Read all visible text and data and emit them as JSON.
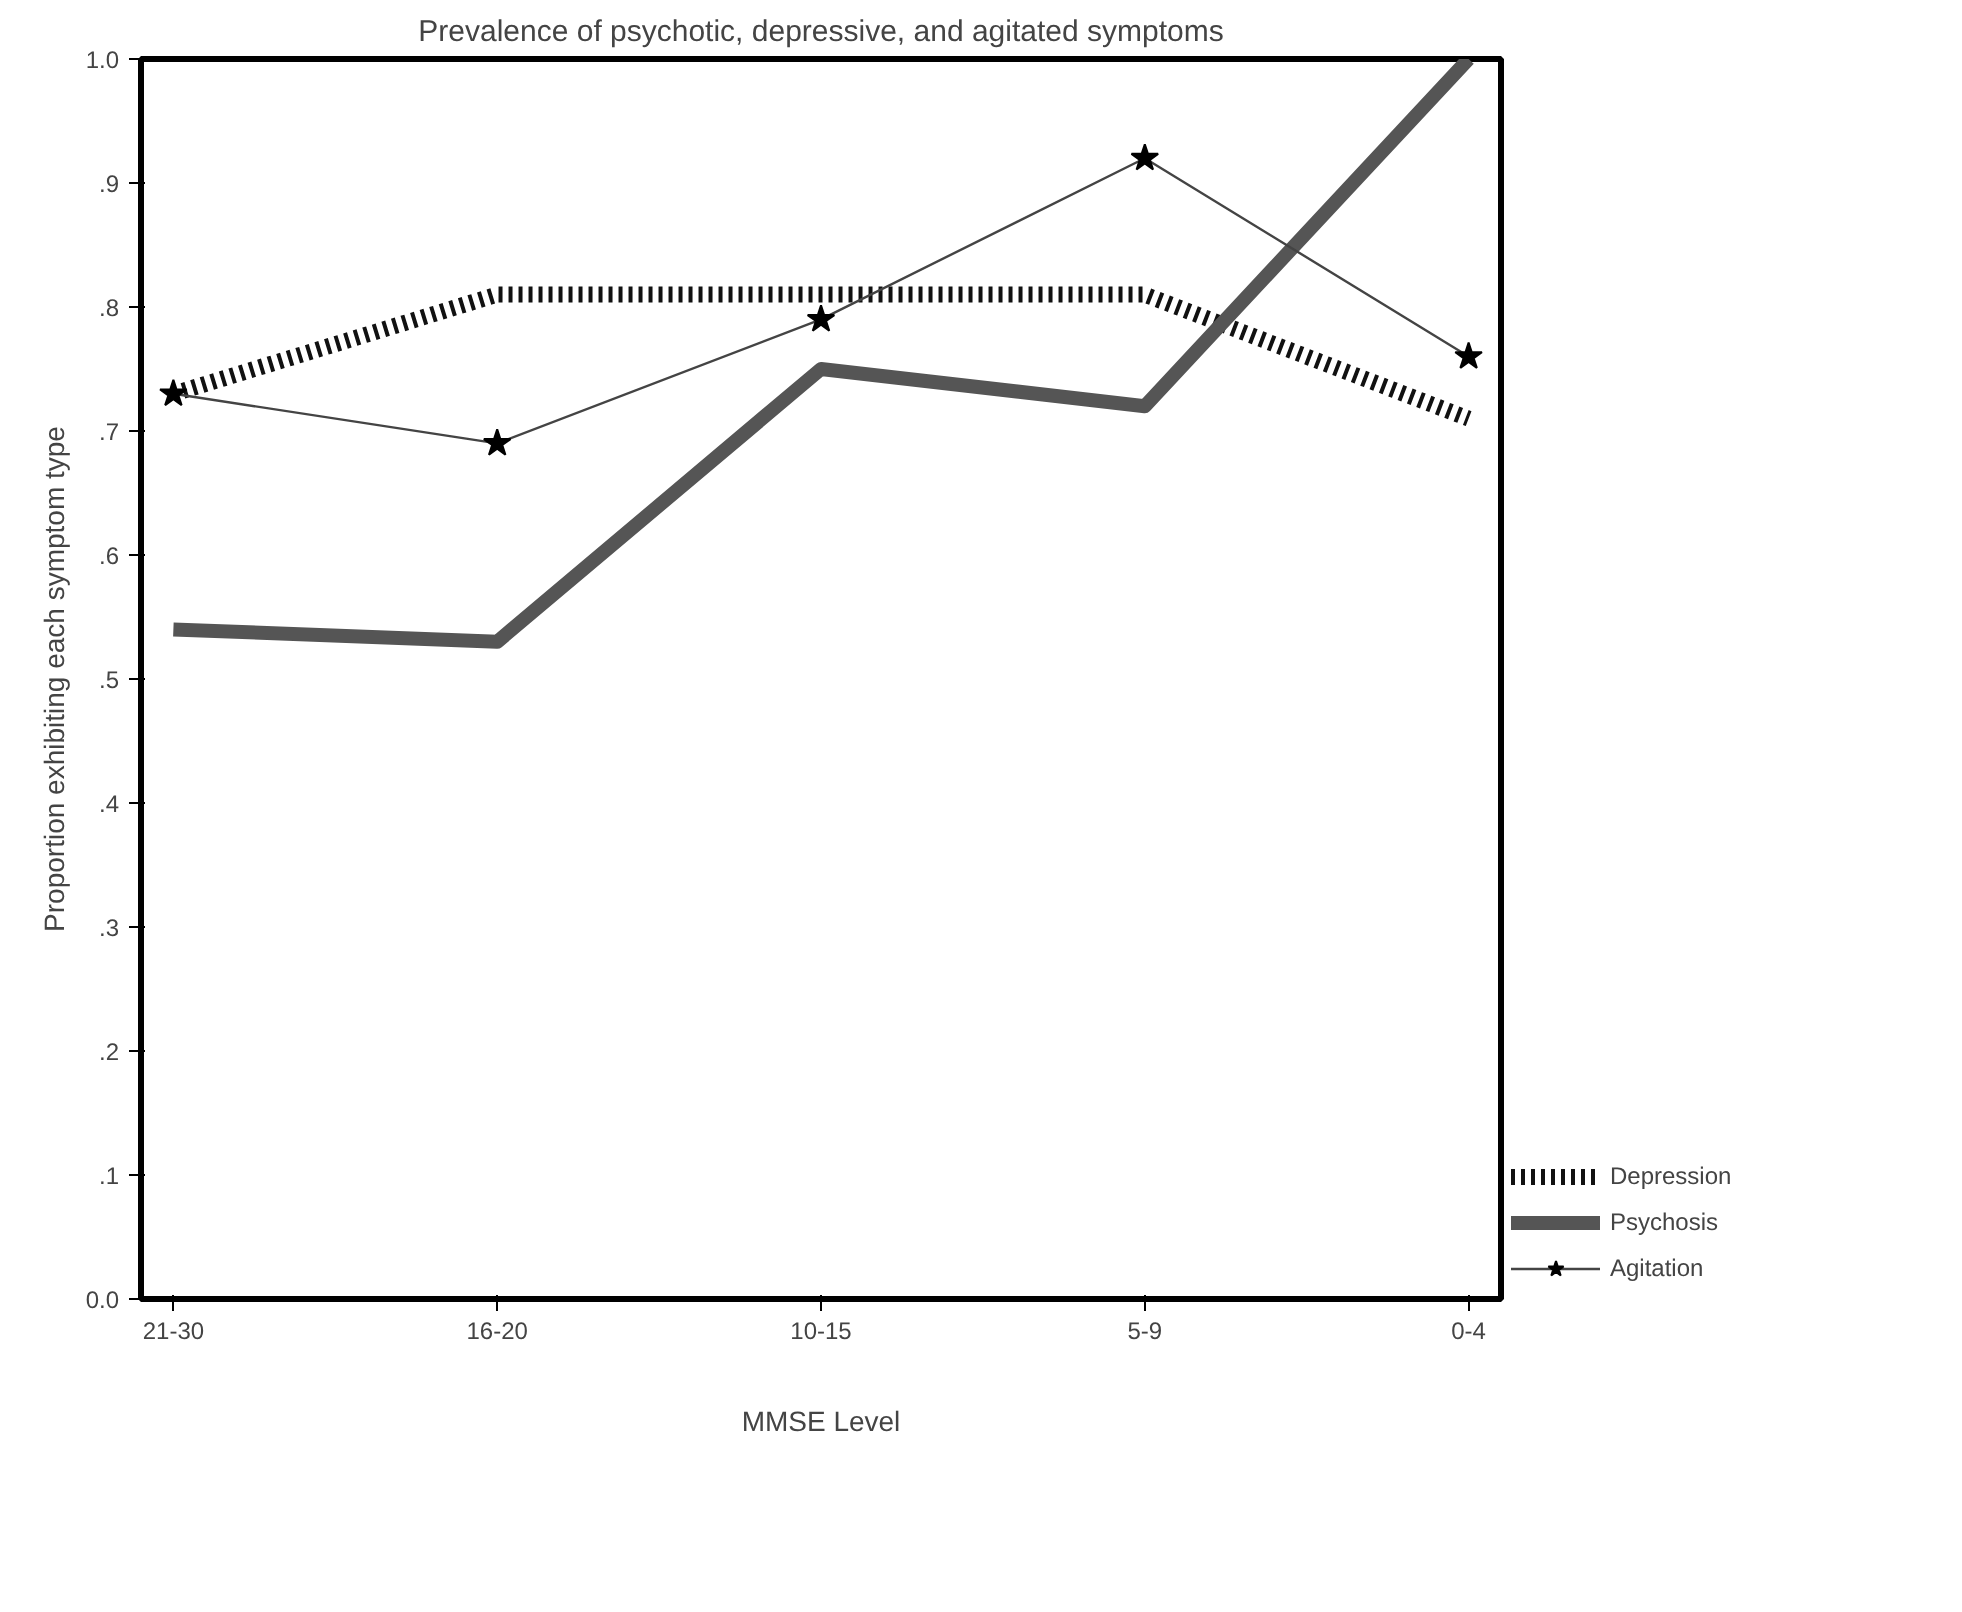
{
  "chart_data": {
    "type": "line",
    "title": "Prevalence of psychotic, depressive, and agitated symptoms",
    "xlabel": "MMSE Level",
    "ylabel": "Proportion exhibiting each symptom type",
    "categories": [
      "21-30",
      "16-20",
      "10-15",
      "5-9",
      "0-4"
    ],
    "ylim": [
      0,
      1
    ],
    "yticks": [
      {
        "value": 0,
        "label": "0.0"
      },
      {
        "value": 0.1,
        "label": ".1"
      },
      {
        "value": 0.2,
        "label": ".2"
      },
      {
        "value": 0.3,
        "label": ".3"
      },
      {
        "value": 0.4,
        "label": ".4"
      },
      {
        "value": 0.5,
        "label": ".5"
      },
      {
        "value": 0.6,
        "label": ".6"
      },
      {
        "value": 0.7,
        "label": ".7"
      },
      {
        "value": 0.8,
        "label": ".8"
      },
      {
        "value": 0.9,
        "label": ".9"
      },
      {
        "value": 1,
        "label": "1.0"
      }
    ],
    "grid": false,
    "legend": "bottom right",
    "series": [
      {
        "name": "Depression",
        "color": "#111111",
        "line_style": "dotted",
        "marker": "none",
        "values": [
          0.73,
          0.81,
          0.81,
          0.81,
          0.71
        ]
      },
      {
        "name": "Psychosis",
        "color": "#555555",
        "line_style": "solid",
        "marker": "none",
        "values": [
          0.54,
          0.53,
          0.75,
          0.72,
          1.0
        ]
      },
      {
        "name": "Agitation",
        "color": "#444444",
        "line_style": "solid",
        "marker": "star",
        "values": [
          0.73,
          0.69,
          0.79,
          0.92,
          0.76
        ]
      }
    ]
  }
}
